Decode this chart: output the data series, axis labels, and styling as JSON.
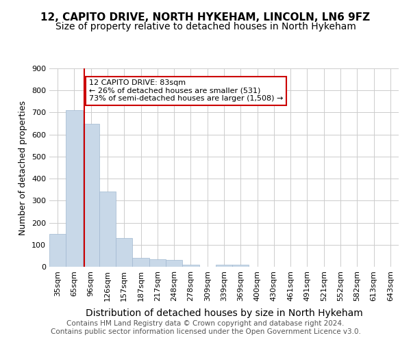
{
  "title": "12, CAPITO DRIVE, NORTH HYKEHAM, LINCOLN, LN6 9FZ",
  "subtitle": "Size of property relative to detached houses in North Hykeham",
  "xlabel": "Distribution of detached houses by size in North Hykeham",
  "ylabel": "Number of detached properties",
  "categories": [
    "35sqm",
    "65sqm",
    "96sqm",
    "126sqm",
    "157sqm",
    "187sqm",
    "217sqm",
    "248sqm",
    "278sqm",
    "309sqm",
    "339sqm",
    "369sqm",
    "400sqm",
    "430sqm",
    "461sqm",
    "491sqm",
    "521sqm",
    "552sqm",
    "582sqm",
    "613sqm",
    "643sqm"
  ],
  "values": [
    150,
    710,
    650,
    340,
    130,
    40,
    35,
    30,
    10,
    0,
    8,
    8,
    0,
    0,
    0,
    0,
    0,
    0,
    0,
    0,
    0
  ],
  "bar_color": "#c8d8e8",
  "bar_edge_color": "#a0b8d0",
  "property_line_x": 83,
  "property_line_color": "#cc0000",
  "annotation_text": "12 CAPITO DRIVE: 83sqm\n← 26% of detached houses are smaller (531)\n73% of semi-detached houses are larger (1,508) →",
  "annotation_box_color": "#ffffff",
  "annotation_box_edge_color": "#cc0000",
  "ylim": [
    0,
    900
  ],
  "yticks": [
    0,
    100,
    200,
    300,
    400,
    500,
    600,
    700,
    800,
    900
  ],
  "footer_text": "Contains HM Land Registry data © Crown copyright and database right 2024.\nContains public sector information licensed under the Open Government Licence v3.0.",
  "background_color": "#ffffff",
  "grid_color": "#cccccc",
  "title_fontsize": 11,
  "subtitle_fontsize": 10,
  "xlabel_fontsize": 10,
  "ylabel_fontsize": 9,
  "tick_fontsize": 8,
  "footer_fontsize": 7.5
}
